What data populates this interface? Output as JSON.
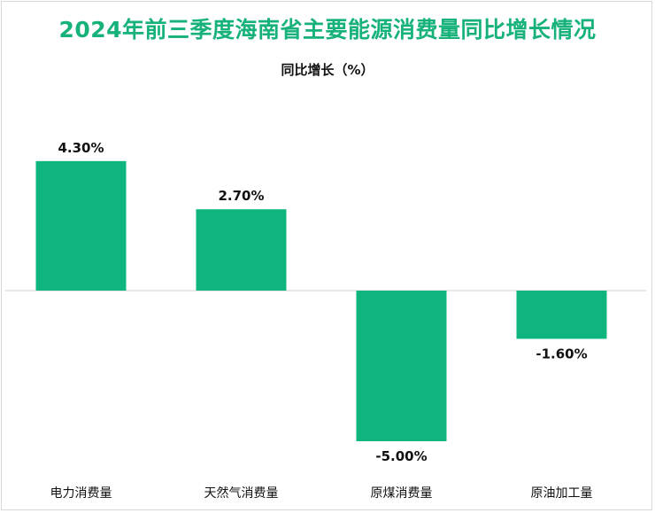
{
  "chart_data": {
    "type": "bar",
    "title": "2024年前三季度海南省主要能源消费量同比增长情况",
    "ylabel": "同比增长（%）",
    "categories": [
      "电力消费量",
      "天然气消费量",
      "原煤消费量",
      "原油加工量"
    ],
    "values": [
      4.3,
      2.7,
      -5.0,
      -1.6
    ],
    "data_labels": [
      "4.30%",
      "2.70%",
      "-5.00%",
      "-1.60%"
    ],
    "ylim": [
      -5.5,
      5.5
    ],
    "grid": false,
    "legend": "none",
    "bar_color": "#0fb57e"
  }
}
